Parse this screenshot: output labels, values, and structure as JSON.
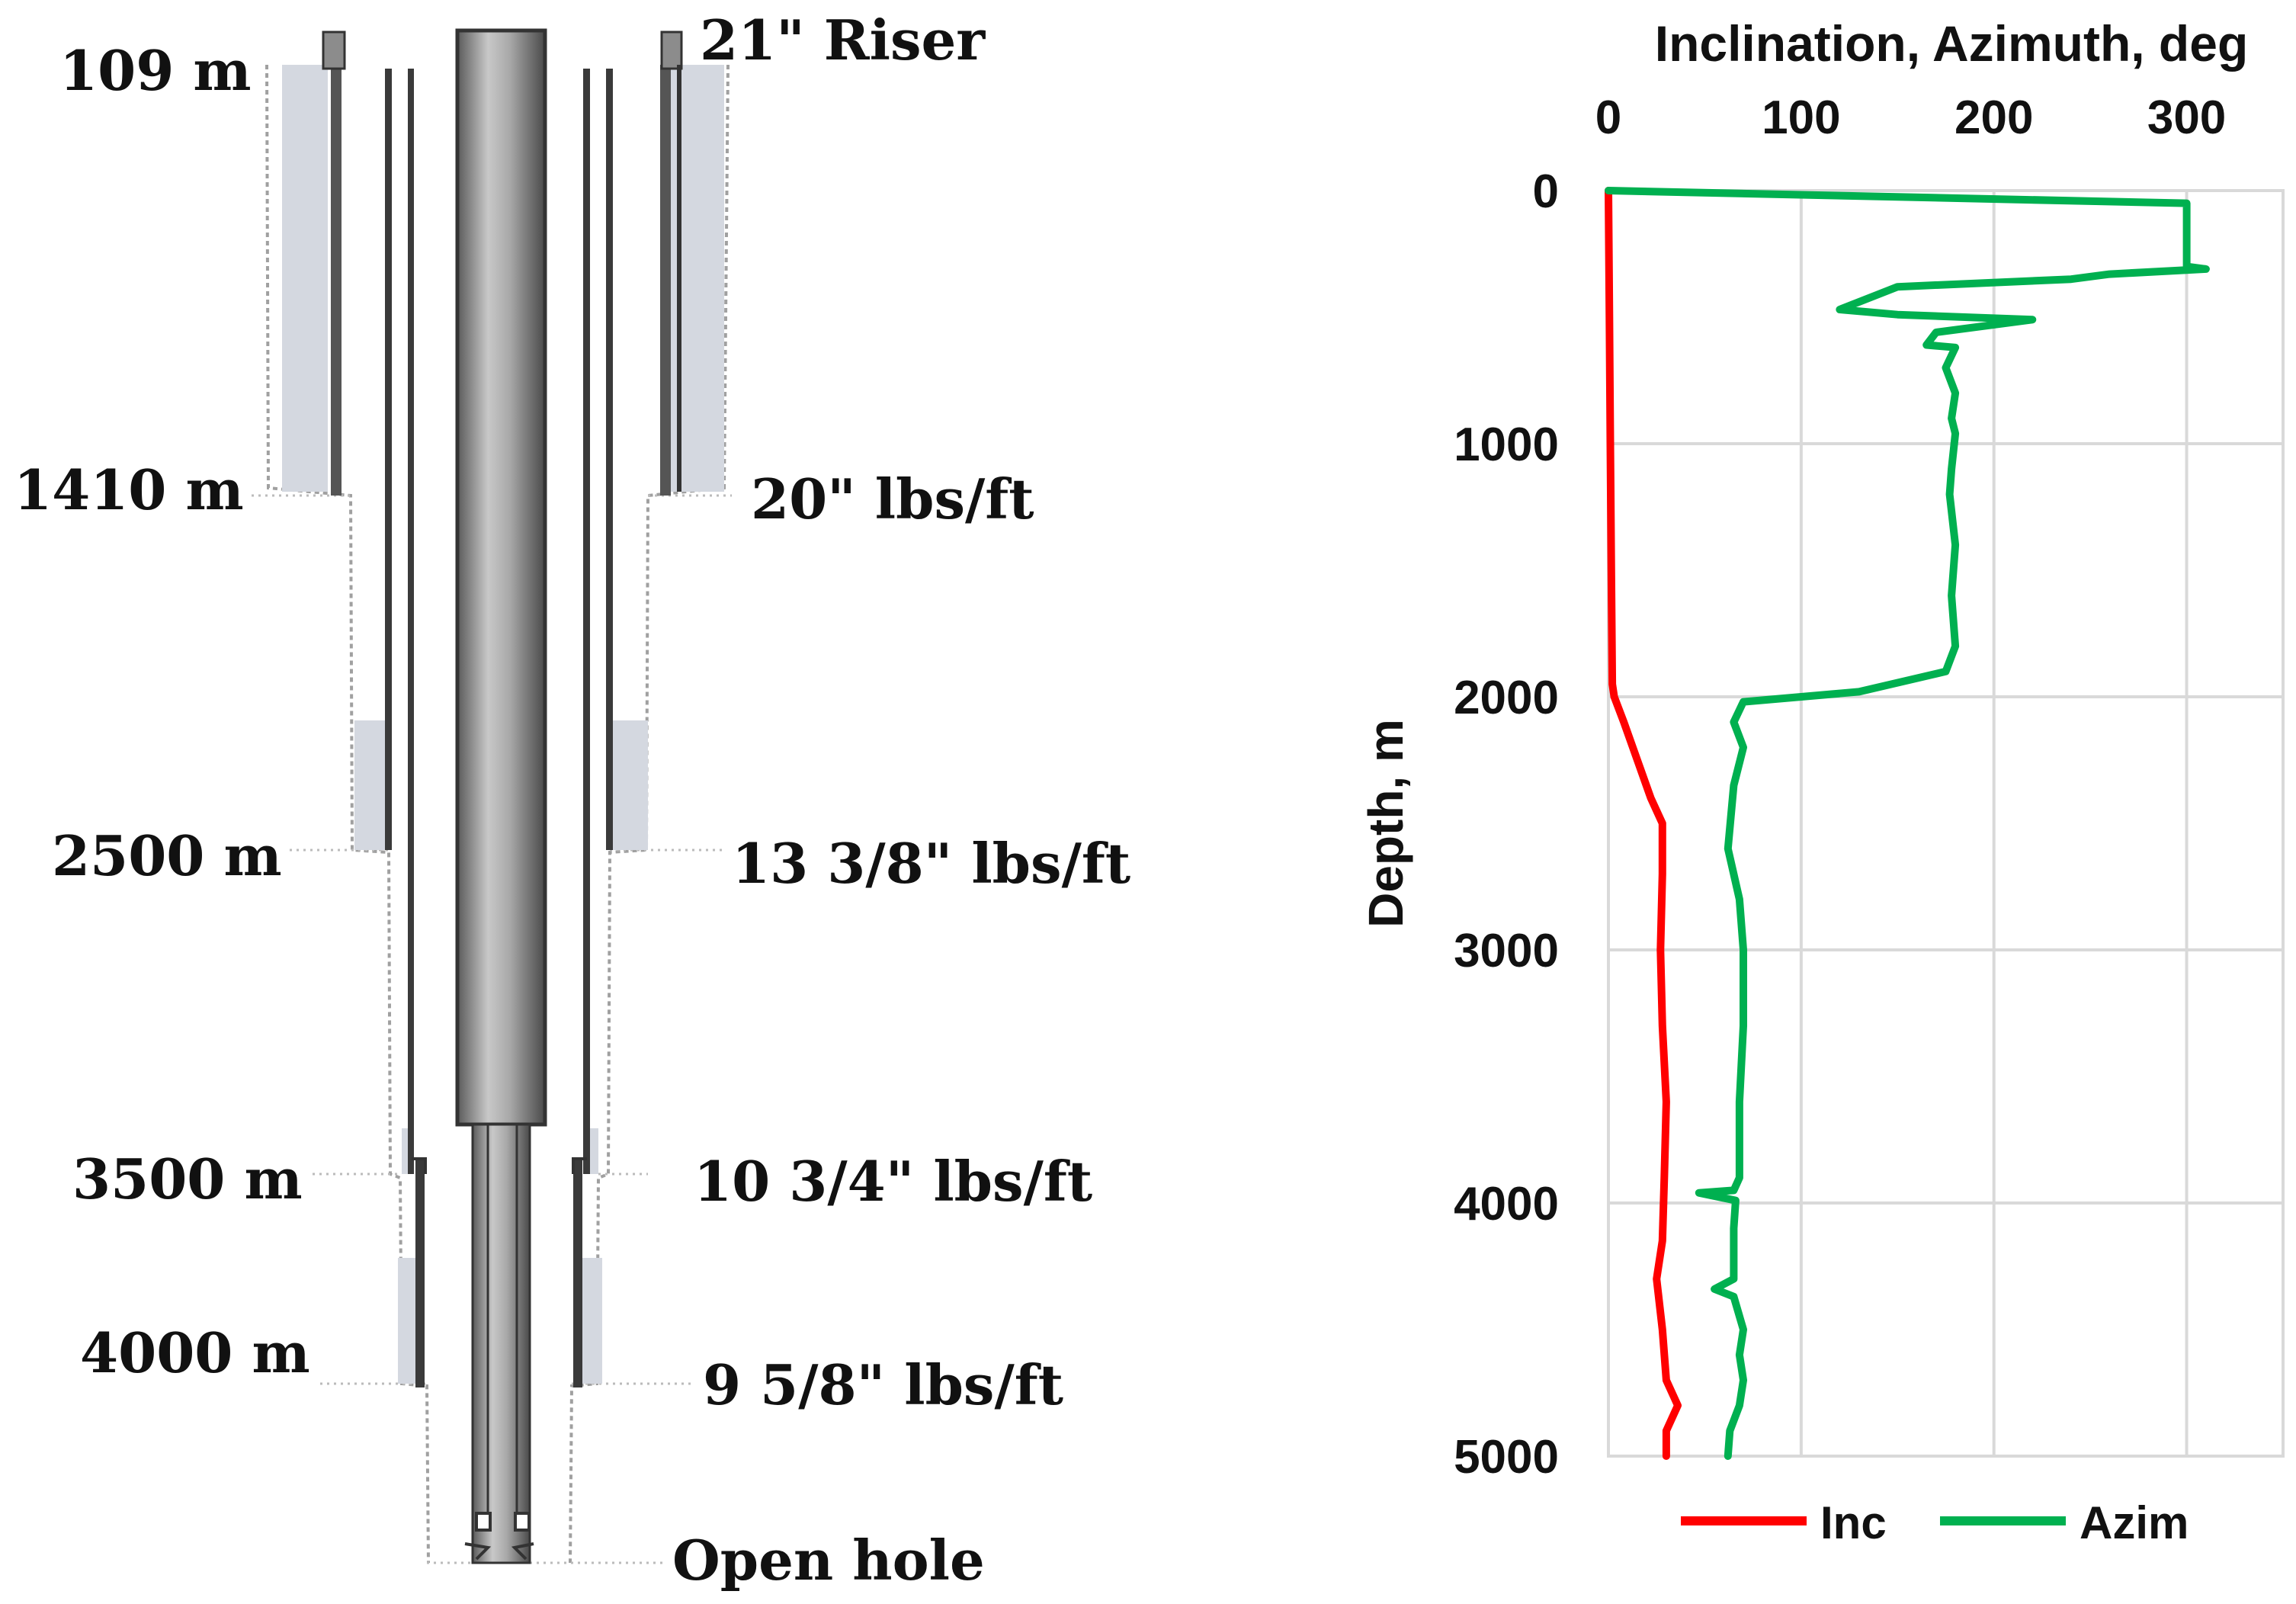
{
  "well_schematic": {
    "depth_labels": [
      "109 m",
      "1410 m",
      "2500 m",
      "3500 m",
      "4000 m"
    ],
    "casing_labels": [
      "21\" Riser",
      "20\" lbs/ft",
      "13 3/8\" lbs/ft",
      "10 3/4\" lbs/ft",
      "9 5/8\" lbs/ft",
      "Open hole"
    ],
    "colors": {
      "cement": "#d4d8e0",
      "pipe": "#8c8c8c",
      "pipe_dark": "#333333",
      "formation": "#9a9a9a"
    }
  },
  "chart_data": {
    "type": "line",
    "title": "Inclination, Azimuth, deg",
    "xlabel": "Inclination, Azimuth, deg",
    "ylabel": "Depth, m",
    "xlim": [
      0,
      350
    ],
    "ylim": [
      0,
      5000
    ],
    "x_ticks": [
      "0",
      "100",
      "200",
      "300"
    ],
    "y_ticks": [
      "0",
      "1000",
      "2000",
      "3000",
      "4000",
      "5000"
    ],
    "legend": [
      "Inc",
      "Azim"
    ],
    "series": [
      {
        "name": "Inc",
        "color": "#ff0000",
        "points": [
          [
            0,
            0
          ],
          [
            0.5,
            500
          ],
          [
            1,
            1000
          ],
          [
            1.5,
            1500
          ],
          [
            2,
            1950
          ],
          [
            3,
            2000
          ],
          [
            8,
            2100
          ],
          [
            15,
            2250
          ],
          [
            22,
            2400
          ],
          [
            28,
            2500
          ],
          [
            28,
            2700
          ],
          [
            27,
            3000
          ],
          [
            28,
            3300
          ],
          [
            30,
            3600
          ],
          [
            29,
            3900
          ],
          [
            28,
            4150
          ],
          [
            25,
            4300
          ],
          [
            28,
            4500
          ],
          [
            30,
            4700
          ],
          [
            36,
            4800
          ],
          [
            30,
            4900
          ],
          [
            30,
            5000
          ]
        ]
      },
      {
        "name": "Azim",
        "color": "#00b050",
        "points": [
          [
            0,
            0
          ],
          [
            300,
            50
          ],
          [
            300,
            150
          ],
          [
            300,
            300
          ],
          [
            310,
            310
          ],
          [
            260,
            330
          ],
          [
            240,
            350
          ],
          [
            150,
            380
          ],
          [
            120,
            470
          ],
          [
            150,
            490
          ],
          [
            220,
            510
          ],
          [
            170,
            560
          ],
          [
            165,
            610
          ],
          [
            180,
            620
          ],
          [
            175,
            700
          ],
          [
            180,
            800
          ],
          [
            178,
            900
          ],
          [
            180,
            960
          ],
          [
            178,
            1100
          ],
          [
            177,
            1200
          ],
          [
            180,
            1400
          ],
          [
            178,
            1600
          ],
          [
            180,
            1800
          ],
          [
            175,
            1900
          ],
          [
            130,
            1980
          ],
          [
            70,
            2020
          ],
          [
            65,
            2100
          ],
          [
            70,
            2200
          ],
          [
            65,
            2350
          ],
          [
            62,
            2600
          ],
          [
            68,
            2800
          ],
          [
            70,
            3000
          ],
          [
            70,
            3300
          ],
          [
            68,
            3600
          ],
          [
            68,
            3900
          ],
          [
            65,
            3950
          ],
          [
            47,
            3960
          ],
          [
            66,
            3990
          ],
          [
            65,
            4100
          ],
          [
            65,
            4300
          ],
          [
            55,
            4340
          ],
          [
            65,
            4370
          ],
          [
            70,
            4500
          ],
          [
            68,
            4600
          ],
          [
            70,
            4700
          ],
          [
            68,
            4800
          ],
          [
            63,
            4900
          ],
          [
            62,
            5000
          ]
        ]
      }
    ]
  }
}
